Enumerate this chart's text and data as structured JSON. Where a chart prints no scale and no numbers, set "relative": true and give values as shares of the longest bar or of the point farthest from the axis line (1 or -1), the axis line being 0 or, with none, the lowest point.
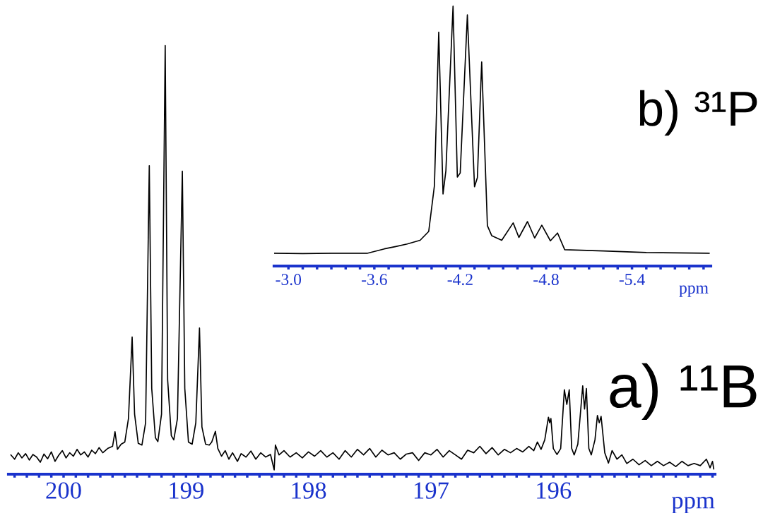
{
  "chart_data": [
    {
      "type": "line",
      "title": "a) ¹¹B",
      "xlabel": "ppm",
      "relative": true,
      "xlim": [
        200.45,
        194.68
      ],
      "xticks": [
        {
          "value": 200.4,
          "label": null
        },
        {
          "value": 200.3,
          "label": null
        },
        {
          "value": 200.2,
          "label": null
        },
        {
          "value": 200.1,
          "label": null
        },
        200,
        {
          "value": 199.9,
          "label": null
        },
        {
          "value": 199.8,
          "label": null
        },
        {
          "value": 199.7,
          "label": null
        },
        {
          "value": 199.6,
          "label": null
        },
        {
          "value": 199.5,
          "label": null
        },
        {
          "value": 199.4,
          "label": null
        },
        {
          "value": 199.3,
          "label": null
        },
        {
          "value": 199.2,
          "label": null
        },
        {
          "value": 199.1,
          "label": null
        },
        199,
        {
          "value": 198.9,
          "label": null
        },
        {
          "value": 198.8,
          "label": null
        },
        {
          "value": 198.7,
          "label": null
        },
        {
          "value": 198.6,
          "label": null
        },
        {
          "value": 198.5,
          "label": null
        },
        {
          "value": 198.4,
          "label": null
        },
        {
          "value": 198.3,
          "label": null
        },
        {
          "value": 198.2,
          "label": null
        },
        {
          "value": 198.1,
          "label": null
        },
        198,
        {
          "value": 197.9,
          "label": null
        },
        {
          "value": 197.8,
          "label": null
        },
        {
          "value": 197.7,
          "label": null
        },
        {
          "value": 197.6,
          "label": null
        },
        {
          "value": 197.5,
          "label": null
        },
        {
          "value": 197.4,
          "label": null
        },
        {
          "value": 197.3,
          "label": null
        },
        {
          "value": 197.2,
          "label": null
        },
        {
          "value": 197.1,
          "label": null
        },
        197,
        {
          "value": 196.9,
          "label": null
        },
        {
          "value": 196.8,
          "label": null
        },
        {
          "value": 196.7,
          "label": null
        },
        {
          "value": 196.6,
          "label": null
        },
        {
          "value": 196.5,
          "label": null
        },
        {
          "value": 196.4,
          "label": null
        },
        {
          "value": 196.3,
          "label": null
        },
        {
          "value": 196.2,
          "label": null
        },
        {
          "value": 196.1,
          "label": null
        },
        196,
        {
          "value": 195.9,
          "label": null
        },
        {
          "value": 195.8,
          "label": null
        },
        {
          "value": 195.7,
          "label": null
        },
        {
          "value": 195.6,
          "label": null
        },
        {
          "value": 195.5,
          "label": null
        },
        {
          "value": 195.4,
          "label": null
        },
        {
          "value": 195.3,
          "label": null
        },
        {
          "value": 195.2,
          "label": null
        },
        {
          "value": 195.1,
          "label": null
        },
        {
          "value": 195.0,
          "label": null
        },
        {
          "value": 194.9,
          "label": null
        },
        {
          "value": 194.8,
          "label": null
        },
        {
          "value": 194.7,
          "label": null
        }
      ],
      "grid": false,
      "legend": false,
      "series": [
        {
          "color": "#000000",
          "x": [
            200.43,
            200.4,
            200.37,
            200.34,
            200.31,
            200.28,
            200.25,
            200.22,
            200.19,
            200.16,
            200.13,
            200.1,
            200.07,
            200.04,
            200.01,
            199.98,
            199.95,
            199.92,
            199.89,
            199.86,
            199.83,
            199.8,
            199.77,
            199.74,
            199.71,
            199.68,
            199.64,
            199.6,
            199.58,
            199.56,
            199.53,
            199.5,
            199.47,
            199.44,
            199.42,
            199.39,
            199.36,
            199.33,
            199.3,
            199.28,
            199.25,
            199.23,
            199.2,
            199.17,
            199.15,
            199.12,
            199.1,
            199.07,
            199.03,
            199.01,
            198.98,
            198.95,
            198.92,
            198.89,
            198.87,
            198.84,
            198.81,
            198.79,
            198.76,
            198.74,
            198.71,
            198.68,
            198.65,
            198.62,
            198.58,
            198.55,
            198.51,
            198.47,
            198.43,
            198.39,
            198.35,
            198.31,
            198.28,
            198.27,
            198.24,
            198.2,
            198.15,
            198.1,
            198.05,
            198.0,
            197.95,
            197.9,
            197.85,
            197.8,
            197.75,
            197.7,
            197.65,
            197.6,
            197.55,
            197.5,
            197.45,
            197.4,
            197.35,
            197.3,
            197.25,
            197.2,
            197.15,
            197.1,
            197.05,
            197.0,
            196.95,
            196.9,
            196.85,
            196.8,
            196.75,
            196.7,
            196.65,
            196.6,
            196.55,
            196.5,
            196.45,
            196.4,
            196.35,
            196.3,
            196.25,
            196.2,
            196.16,
            196.13,
            196.1,
            196.07,
            196.04,
            196.03,
            196.02,
            196.0,
            195.97,
            195.94,
            195.91,
            195.89,
            195.87,
            195.85,
            195.83,
            195.8,
            195.76,
            195.745,
            195.73,
            195.71,
            195.69,
            195.66,
            195.64,
            195.625,
            195.61,
            195.58,
            195.55,
            195.52,
            195.48,
            195.44,
            195.4,
            195.35,
            195.3,
            195.25,
            195.2,
            195.15,
            195.1,
            195.05,
            195.0,
            194.95,
            194.9,
            194.85,
            194.8,
            194.75,
            194.72,
            194.7,
            194.69
          ],
          "values": [
            0.045,
            0.035,
            0.05,
            0.038,
            0.048,
            0.033,
            0.046,
            0.04,
            0.028,
            0.047,
            0.036,
            0.052,
            0.03,
            0.044,
            0.055,
            0.038,
            0.05,
            0.042,
            0.058,
            0.045,
            0.052,
            0.04,
            0.056,
            0.048,
            0.062,
            0.05,
            0.06,
            0.065,
            0.099,
            0.058,
            0.07,
            0.075,
            0.13,
            0.32,
            0.14,
            0.072,
            0.068,
            0.12,
            0.72,
            0.2,
            0.085,
            0.076,
            0.14,
            1.0,
            0.22,
            0.09,
            0.08,
            0.13,
            0.707,
            0.2,
            0.075,
            0.07,
            0.12,
            0.341,
            0.11,
            0.07,
            0.068,
            0.075,
            0.1,
            0.06,
            0.042,
            0.055,
            0.035,
            0.05,
            0.03,
            0.048,
            0.04,
            0.054,
            0.035,
            0.05,
            0.04,
            0.046,
            0.01,
            0.068,
            0.045,
            0.055,
            0.04,
            0.05,
            0.038,
            0.052,
            0.042,
            0.055,
            0.04,
            0.05,
            0.035,
            0.055,
            0.04,
            0.058,
            0.045,
            0.06,
            0.04,
            0.056,
            0.045,
            0.05,
            0.035,
            0.047,
            0.05,
            0.032,
            0.05,
            0.045,
            0.058,
            0.04,
            0.055,
            0.045,
            0.035,
            0.056,
            0.05,
            0.065,
            0.048,
            0.062,
            0.045,
            0.058,
            0.05,
            0.06,
            0.052,
            0.065,
            0.055,
            0.075,
            0.058,
            0.08,
            0.133,
            0.12,
            0.13,
            0.06,
            0.046,
            0.06,
            0.197,
            0.163,
            0.197,
            0.06,
            0.045,
            0.07,
            0.206,
            0.152,
            0.2,
            0.06,
            0.045,
            0.08,
            0.137,
            0.12,
            0.135,
            0.05,
            0.026,
            0.055,
            0.035,
            0.045,
            0.025,
            0.035,
            0.022,
            0.032,
            0.02,
            0.03,
            0.02,
            0.028,
            0.018,
            0.03,
            0.02,
            0.025,
            0.02,
            0.035,
            0.015,
            0.03,
            0.012
          ]
        }
      ]
    },
    {
      "type": "line",
      "title": "b) ³¹P",
      "xlabel": "ppm",
      "relative": true,
      "xlim": [
        -2.9,
        -5.95
      ],
      "xticks": [
        {
          "value": -3.0,
          "label": "-3.0"
        },
        {
          "value": -3.1,
          "label": null
        },
        {
          "value": -3.2,
          "label": null
        },
        {
          "value": -3.3,
          "label": null
        },
        {
          "value": -3.4,
          "label": null
        },
        {
          "value": -3.5,
          "label": null
        },
        {
          "value": -3.6,
          "label": "-3.6"
        },
        {
          "value": -3.7,
          "label": null
        },
        {
          "value": -3.8,
          "label": null
        },
        {
          "value": -3.9,
          "label": null
        },
        {
          "value": -4.0,
          "label": null
        },
        {
          "value": -4.1,
          "label": null
        },
        {
          "value": -4.2,
          "label": "-4.2"
        },
        {
          "value": -4.3,
          "label": null
        },
        {
          "value": -4.4,
          "label": null
        },
        {
          "value": -4.5,
          "label": null
        },
        {
          "value": -4.6,
          "label": null
        },
        {
          "value": -4.7,
          "label": null
        },
        {
          "value": -4.8,
          "label": "-4.8"
        },
        {
          "value": -4.9,
          "label": null
        },
        {
          "value": -5.0,
          "label": null
        },
        {
          "value": -5.1,
          "label": null
        },
        {
          "value": -5.2,
          "label": null
        },
        {
          "value": -5.3,
          "label": null
        },
        {
          "value": -5.4,
          "label": "-5.4"
        },
        {
          "value": -5.5,
          "label": null
        },
        {
          "value": -5.6,
          "label": null
        },
        {
          "value": -5.7,
          "label": null
        },
        {
          "value": -5.8,
          "label": null
        },
        {
          "value": -5.9,
          "label": null
        }
      ],
      "grid": false,
      "legend": false,
      "series": [
        {
          "color": "#000000",
          "x": [
            -2.9,
            -3.1,
            -3.3,
            -3.55,
            -3.67,
            -3.75,
            -3.83,
            -3.92,
            -3.98,
            -4.02,
            -4.05,
            -4.08,
            -4.1,
            -4.15,
            -4.18,
            -4.2,
            -4.25,
            -4.3,
            -4.32,
            -4.35,
            -4.39,
            -4.42,
            -4.49,
            -4.57,
            -4.61,
            -4.67,
            -4.72,
            -4.77,
            -4.83,
            -4.88,
            -4.93,
            -5.2,
            -5.5,
            -5.94
          ],
          "values": [
            0.049,
            0.048,
            0.049,
            0.049,
            0.066,
            0.075,
            0.085,
            0.099,
            0.133,
            0.31,
            0.9,
            0.277,
            0.367,
            1.0,
            0.342,
            0.358,
            0.966,
            0.305,
            0.34,
            0.785,
            0.155,
            0.117,
            0.099,
            0.166,
            0.11,
            0.171,
            0.108,
            0.157,
            0.097,
            0.127,
            0.063,
            0.058,
            0.052,
            0.049
          ]
        }
      ]
    }
  ]
}
